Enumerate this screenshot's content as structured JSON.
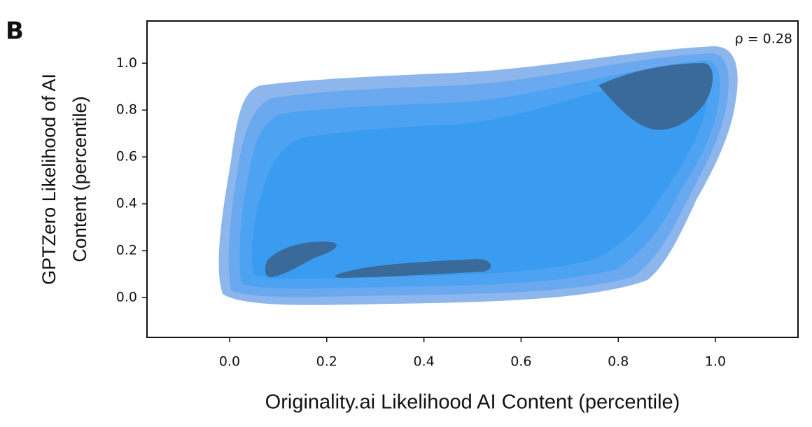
{
  "chart_data": {
    "type": "kde",
    "panel_label": "B",
    "annotation": "ρ = 0.28",
    "xlabel": "Originality.ai Likelihood AI Content (percentile)",
    "ylabel": [
      "GPTZero Likelihood of AI",
      "Content (percentile)"
    ],
    "xlim": [
      -0.17,
      1.17
    ],
    "ylim": [
      -0.17,
      1.18
    ],
    "xticks": [
      {
        "value": 0,
        "label": "0.0"
      },
      {
        "value": 0.2,
        "label": "0.2"
      },
      {
        "value": 0.4,
        "label": "0.4"
      },
      {
        "value": 0.6,
        "label": "0.6"
      },
      {
        "value": 0.8,
        "label": "0.8"
      },
      {
        "value": 1,
        "label": "1.0"
      }
    ],
    "yticks": [
      {
        "value": 0,
        "label": "0.0"
      },
      {
        "value": 0.2,
        "label": "0.2"
      },
      {
        "value": 0.4,
        "label": "0.4"
      },
      {
        "value": 0.6,
        "label": "0.6"
      },
      {
        "value": 0.8,
        "label": "0.8"
      },
      {
        "value": 1,
        "label": "1.0"
      }
    ]
  }
}
